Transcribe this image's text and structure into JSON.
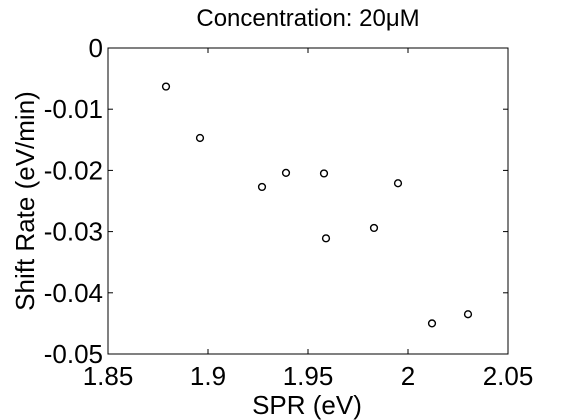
{
  "chart_data": {
    "type": "scatter",
    "title": "Concentration: 20μM",
    "xlabel": "SPR (eV)",
    "ylabel": "Shift Rate (eV/min)",
    "xlim": [
      1.85,
      2.05
    ],
    "ylim": [
      -0.05,
      0
    ],
    "x_ticks": [
      1.85,
      1.9,
      1.95,
      2.0,
      2.05
    ],
    "x_tick_labels": [
      "1.85",
      "1.9",
      "1.95",
      "2",
      "2.05"
    ],
    "y_ticks": [
      0,
      -0.01,
      -0.02,
      -0.03,
      -0.04,
      -0.05
    ],
    "y_tick_labels": [
      "0",
      "-0.01",
      "-0.02",
      "-0.03",
      "-0.04",
      "-0.05"
    ],
    "grid": false,
    "marker": "circle-open",
    "series": [
      {
        "points": [
          {
            "x": 1.879,
            "y": -0.0063
          },
          {
            "x": 1.896,
            "y": -0.0147
          },
          {
            "x": 1.927,
            "y": -0.0227
          },
          {
            "x": 1.939,
            "y": -0.0204
          },
          {
            "x": 1.958,
            "y": -0.0205
          },
          {
            "x": 1.959,
            "y": -0.0311
          },
          {
            "x": 1.983,
            "y": -0.0294
          },
          {
            "x": 1.995,
            "y": -0.0221
          },
          {
            "x": 2.012,
            "y": -0.045
          },
          {
            "x": 2.03,
            "y": -0.0435
          }
        ]
      }
    ]
  }
}
